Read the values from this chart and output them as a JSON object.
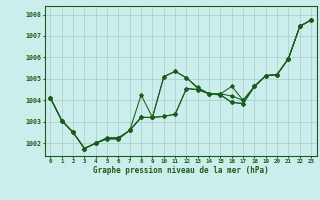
{
  "xlabel": "Graphe pression niveau de la mer (hPa)",
  "bg_color": "#cbedec",
  "line_color": "#1a5c1a",
  "ylim": [
    1001.4,
    1008.4
  ],
  "xlim": [
    -0.5,
    23.5
  ],
  "yticks": [
    1002,
    1003,
    1004,
    1005,
    1006,
    1007,
    1008
  ],
  "xticks": [
    0,
    1,
    2,
    3,
    4,
    5,
    6,
    7,
    8,
    9,
    10,
    11,
    12,
    13,
    14,
    15,
    16,
    17,
    18,
    19,
    20,
    21,
    22,
    23
  ],
  "series": [
    [
      1004.1,
      1003.05,
      1002.5,
      1001.75,
      1002.0,
      1002.2,
      1002.2,
      1002.6,
      1003.2,
      1003.2,
      1005.1,
      1005.35,
      1005.05,
      1004.6,
      1004.3,
      1004.3,
      1004.65,
      1004.0,
      1004.65,
      1005.15,
      1005.2,
      1005.95,
      1007.45,
      1007.75
    ],
    [
      1004.1,
      1003.05,
      1002.5,
      1001.75,
      1002.0,
      1002.2,
      1002.2,
      1002.6,
      1004.25,
      1003.2,
      1005.1,
      1005.35,
      1005.05,
      1004.55,
      1004.3,
      1004.3,
      1004.2,
      1004.0,
      1004.65,
      1005.15,
      1005.2,
      1005.95,
      1007.45,
      1007.75
    ],
    [
      1004.1,
      1003.05,
      1002.5,
      1001.75,
      1002.0,
      1002.25,
      1002.25,
      1002.6,
      1003.2,
      1003.2,
      1003.25,
      1003.35,
      1004.55,
      1004.5,
      1004.3,
      1004.25,
      1003.9,
      1003.85,
      1004.65,
      1005.15,
      1005.2,
      1005.95,
      1007.45,
      1007.75
    ],
    [
      1004.1,
      1003.05,
      1002.5,
      1001.75,
      1002.0,
      1002.25,
      1002.25,
      1002.6,
      1003.2,
      1003.2,
      1003.25,
      1003.35,
      1004.55,
      1004.5,
      1004.3,
      1004.25,
      1003.9,
      1003.85,
      1004.65,
      1005.15,
      1005.2,
      1005.95,
      1007.45,
      1007.75
    ]
  ],
  "xlabel_fontsize": 5.5,
  "xtick_fontsize": 4.2,
  "ytick_fontsize": 4.8
}
